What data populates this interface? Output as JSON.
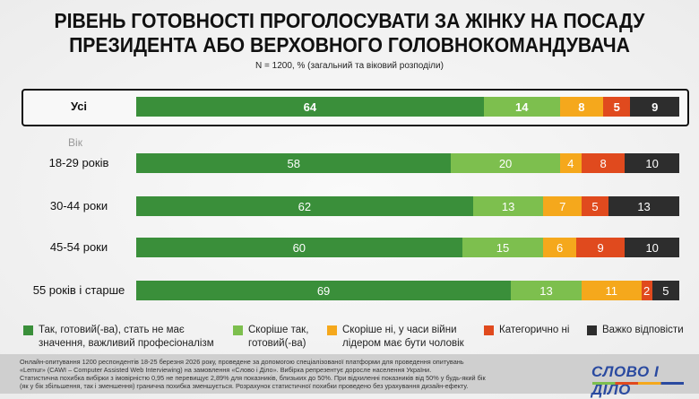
{
  "title_line1": "РІВЕНЬ ГОТОВНОСТІ ПРОГОЛОСУВАТИ ЗА ЖІНКУ НА ПОСАДУ",
  "title_line2": "ПРЕЗИДЕНТА АБО ВЕРХОВНОГО ГОЛОВНОКОМАНДУВАЧА",
  "subtitle": "N = 1200, % (загальний та віковий розподіли)",
  "age_header": "Вік",
  "chart_data": {
    "type": "bar",
    "orientation": "horizontal",
    "stacked": true,
    "categories": [
      "Усі",
      "18-29 років",
      "30-44 роки",
      "45-54 роки",
      "55 років і старше"
    ],
    "series": [
      {
        "name": "Так, готовий(-ва), стать не має значення, важливий професіоналізм",
        "color": "#3a8f3a",
        "values": [
          64,
          58,
          62,
          60,
          69
        ]
      },
      {
        "name": "Скоріше так, готовий(-ва)",
        "color": "#7dbf4e",
        "values": [
          14,
          20,
          13,
          15,
          13
        ]
      },
      {
        "name": "Скоріше ні, у часи війни лідером має бути чоловік",
        "color": "#f5a81c",
        "values": [
          8,
          4,
          7,
          6,
          11
        ]
      },
      {
        "name": "Категорично ні",
        "color": "#e04a1e",
        "values": [
          5,
          8,
          5,
          9,
          2
        ]
      },
      {
        "name": "Важко відповісти",
        "color": "#2d2d2d",
        "values": [
          9,
          10,
          13,
          10,
          5
        ]
      }
    ],
    "legend": "bottom"
  },
  "legend": [
    {
      "l1": "Так, готовий(-ва), стать не має",
      "l2": "значення, важливий професіоналізм"
    },
    {
      "l1": "Скоріше так,",
      "l2": "готовий(-ва)"
    },
    {
      "l1": "Скоріше ні, у часи війни",
      "l2": "лідером має бути чоловік"
    },
    {
      "l1": "Категорично ні",
      "l2": ""
    },
    {
      "l1": "Важко відповісти",
      "l2": ""
    }
  ],
  "footer": {
    "lines": [
      "Онлайн-опитування 1200 респондентів 18-25 березня 2026 року, проведене за допомогою спеціалізованої платформи для проведення опитувань",
      "«Lemur» (CAWI – Computer Assisted Web Interviewing) на замовлення «Слово і Діло». Вибірка репрезентує доросле населення України.",
      "Статистична похибка вибірки з імовірністю 0,95 не перевищує 2,89% для показників, близьких до 50%. При відхиленні показників від 50% у будь-який бік",
      "(як у бік збільшення, так і зменшення) гранична похибка зменшується. Розрахунок статистичної похибки проведено без урахування дизайн-ефекту."
    ],
    "logo": "СЛОВО І ДІЛО"
  }
}
